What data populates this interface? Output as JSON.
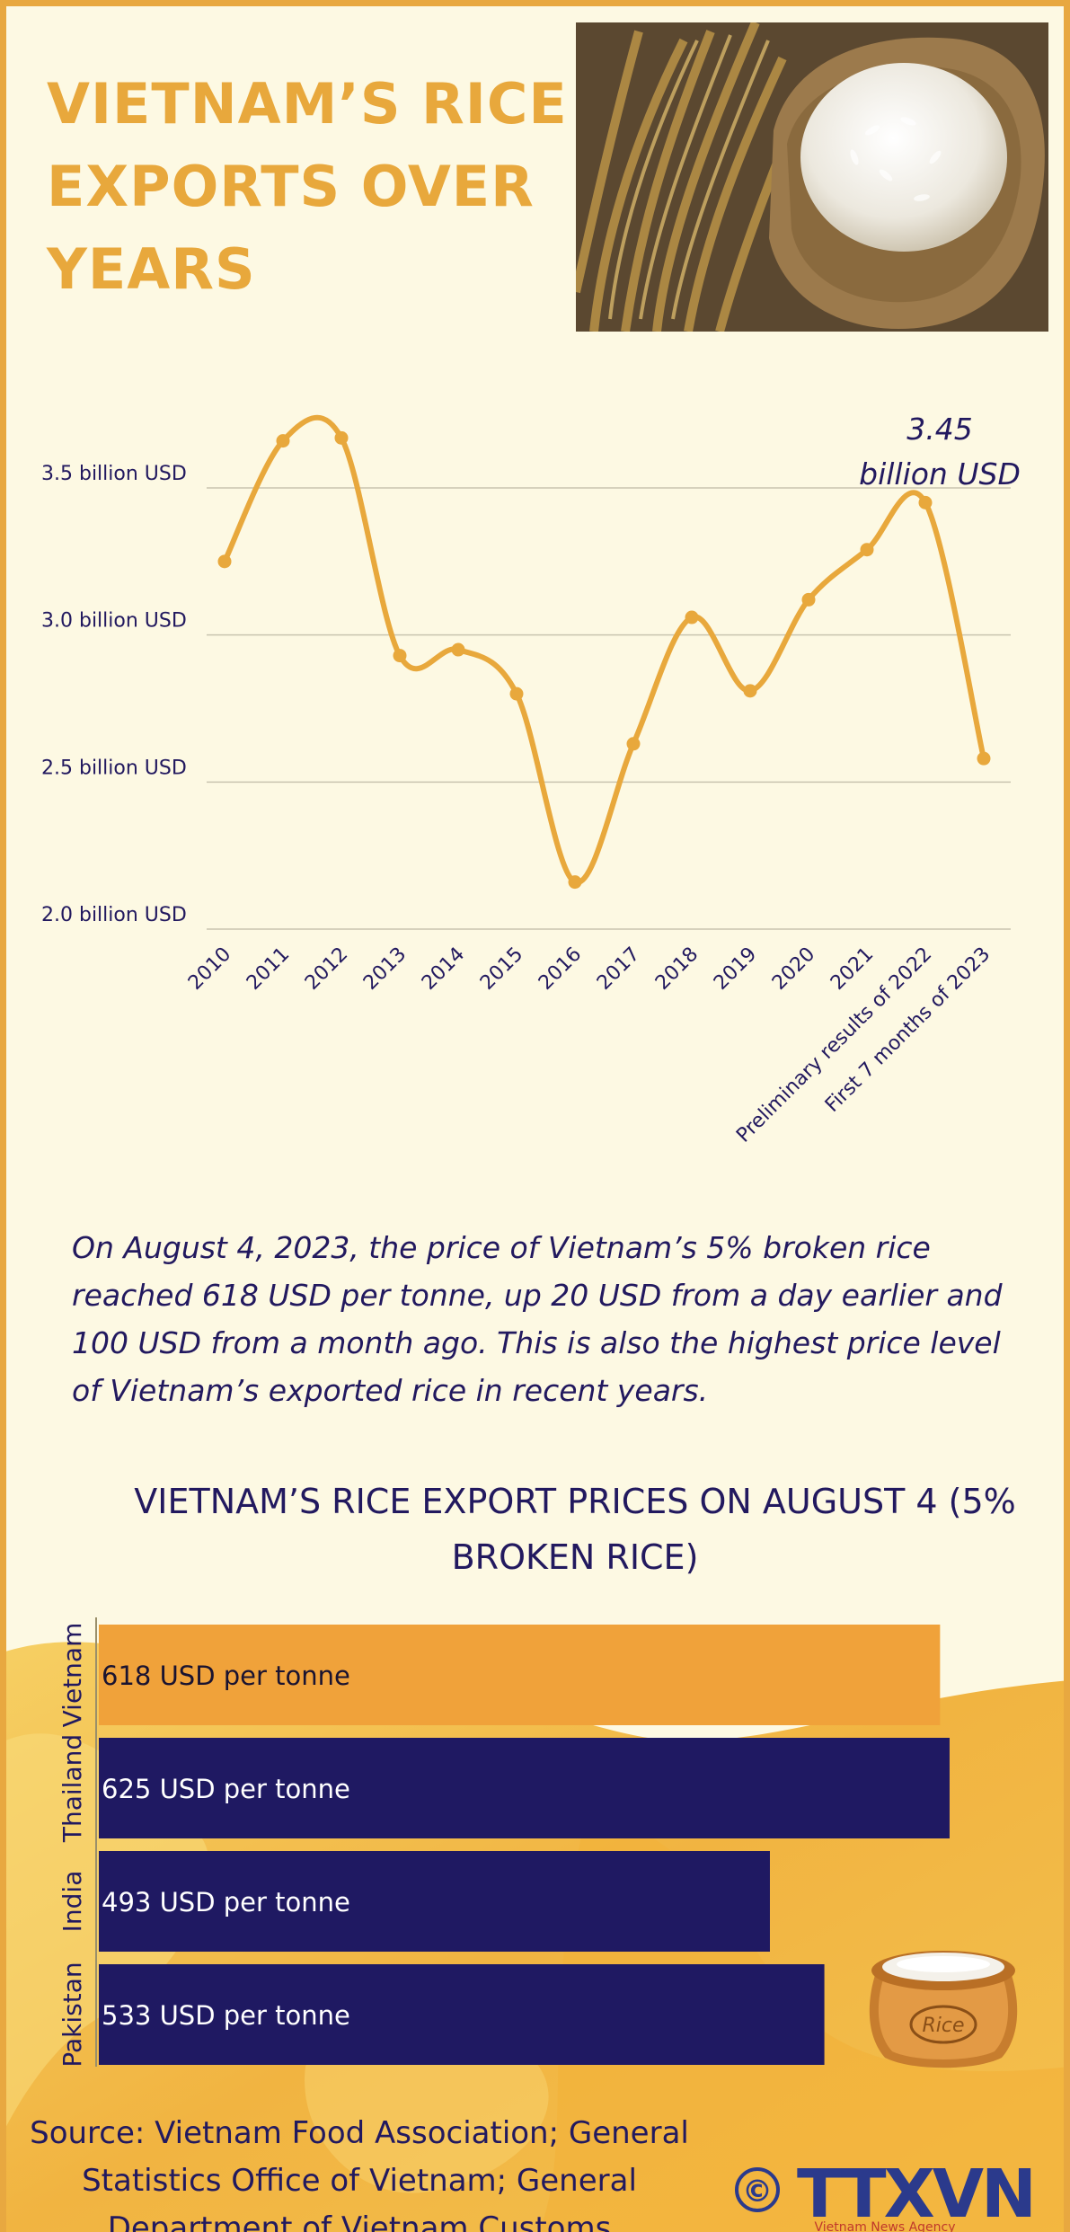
{
  "header": {
    "title": "VIETNAM’S RICE EXPORTS OVER YEARS"
  },
  "colors": {
    "background": "#fdf9e3",
    "accent": "#e8a83c",
    "navy": "#22195f",
    "vietnam_bar": "#f0a23a",
    "other_bar": "#1f1962"
  },
  "chart_data": [
    {
      "type": "line",
      "title": "",
      "xlabel": "",
      "ylabel": "",
      "ylim": [
        2.0,
        3.5
      ],
      "ytick_labels": [
        "3.5 billion USD",
        "3.0 billion USD",
        "2.5 billion USD",
        "2.0 billion USD"
      ],
      "grid": true,
      "categories": [
        "2010",
        "2011",
        "2012",
        "2013",
        "2014",
        "2015",
        "2016",
        "2017",
        "2018",
        "2019",
        "2020",
        "2021",
        "Preliminary results of 2022",
        "First 7 months of 2023"
      ],
      "series": [
        {
          "values": [
            3.25,
            3.66,
            3.67,
            2.93,
            2.95,
            2.8,
            2.16,
            2.63,
            3.06,
            2.81,
            3.12,
            3.29,
            3.45,
            2.58
          ]
        }
      ],
      "annotation": {
        "line1": "3.45",
        "line2": "billion USD",
        "category": "Preliminary results of 2022"
      }
    },
    {
      "type": "bar",
      "orientation": "horizontal",
      "title": "VIETNAM’S RICE EXPORT PRICES ON AUGUST 4 (5% BROKEN RICE)",
      "categories": [
        "Vietnam",
        "Thailand",
        "India",
        "Pakistan"
      ],
      "values": [
        618,
        625,
        493,
        533
      ],
      "value_labels": [
        "618 USD per tonne",
        "625 USD per tonne",
        "493 USD per tonne",
        "533 USD per tonne"
      ],
      "xlim": [
        0,
        660
      ]
    }
  ],
  "description": "On August 4, 2023, the price of Vietnam’s 5% broken rice reached 618 USD per tonne, up 20 USD from a day earlier and 100 USD from a month ago. This is also the highest price level of Vietnam’s exported rice in recent years.",
  "footer": {
    "source": "Source: Vietnam Food Association; General Statistics Office of Vietnam; General Department of Vietnam Customs",
    "logo_text": "TTXVN",
    "logo_subtext": "Vietnam News Agency",
    "copyright_symbol": "©",
    "bag_label": "Rice"
  }
}
